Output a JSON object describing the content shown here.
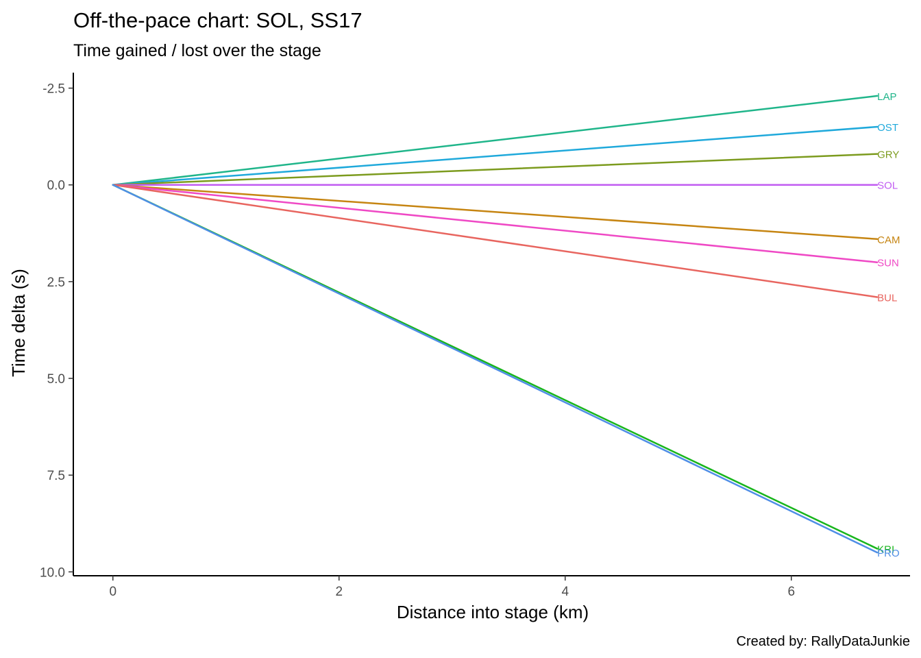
{
  "chart_data": {
    "type": "line",
    "title": "Off-the-pace chart: SOL, SS17",
    "subtitle": "Time gained / lost over the stage",
    "xlabel": "Distance into stage (km)",
    "ylabel": "Time delta (s)",
    "caption": "Created by: RallyDataJunkie",
    "xlim": [
      -0.35,
      7.05
    ],
    "ylim": [
      -2.9,
      10.1
    ],
    "y_reversed": true,
    "grid": false,
    "legend": "none",
    "x_ticks": [
      {
        "value": 0,
        "label": "0"
      },
      {
        "value": 2,
        "label": "2"
      },
      {
        "value": 4,
        "label": "4"
      },
      {
        "value": 6,
        "label": "6"
      }
    ],
    "y_ticks": [
      {
        "value": -2.5,
        "label": "-2.5"
      },
      {
        "value": 0,
        "label": "0.0"
      },
      {
        "value": 2.5,
        "label": "2.5"
      },
      {
        "value": 5,
        "label": "5.0"
      },
      {
        "value": 7.5,
        "label": "7.5"
      },
      {
        "value": 10,
        "label": "10.0"
      }
    ],
    "series": [
      {
        "name": "LAP",
        "color": "#1fb58a",
        "x": [
          0,
          6.76
        ],
        "y": [
          0,
          -2.3
        ]
      },
      {
        "name": "OST",
        "color": "#1fa9db",
        "x": [
          0,
          6.76
        ],
        "y": [
          0,
          -1.5
        ]
      },
      {
        "name": "GRY",
        "color": "#7c9b1e",
        "x": [
          0,
          6.76
        ],
        "y": [
          0,
          -0.8
        ]
      },
      {
        "name": "SOL",
        "color": "#c15cf2",
        "x": [
          0,
          6.76
        ],
        "y": [
          0,
          0
        ]
      },
      {
        "name": "CAM",
        "color": "#c68512",
        "x": [
          0,
          6.76
        ],
        "y": [
          0,
          1.4
        ]
      },
      {
        "name": "SUN",
        "color": "#ef49c5",
        "x": [
          0,
          6.76
        ],
        "y": [
          0,
          2.0
        ]
      },
      {
        "name": "BUL",
        "color": "#e8655f",
        "x": [
          0,
          6.76
        ],
        "y": [
          0,
          2.9
        ]
      },
      {
        "name": "KRI",
        "color": "#18b51c",
        "x": [
          0,
          6.76
        ],
        "y": [
          0,
          9.4
        ]
      },
      {
        "name": "PRO",
        "color": "#4f8ee6",
        "x": [
          0,
          6.76
        ],
        "y": [
          0,
          9.5
        ]
      }
    ]
  }
}
